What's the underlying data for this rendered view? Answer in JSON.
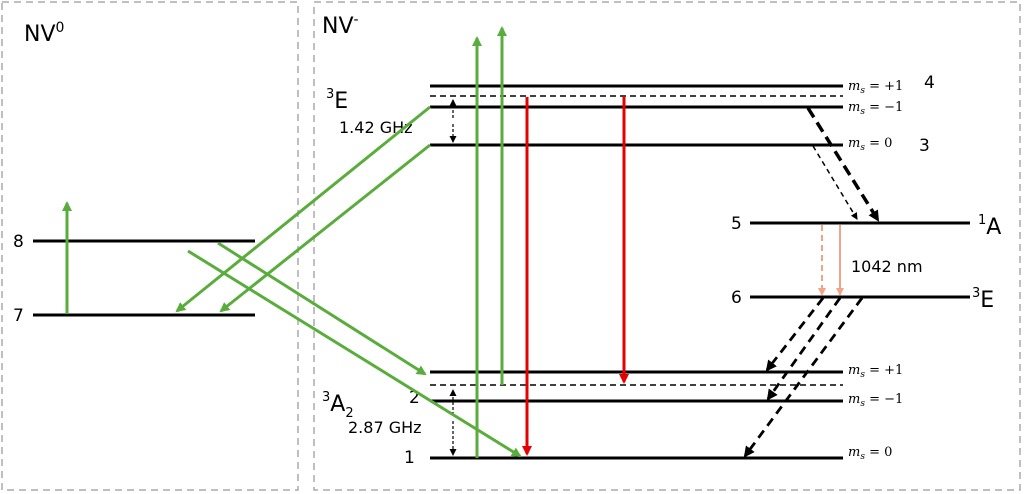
{
  "panels": {
    "left_title": "NV",
    "left_title_sup": "0",
    "right_title": "NV",
    "right_title_sup": "-"
  },
  "states": {
    "excited_triplet": {
      "sup": "3",
      "base": "E"
    },
    "ground_triplet": {
      "sup": "3",
      "base": "A",
      "sub": "2"
    },
    "singlet_upper": {
      "sup": "1",
      "base": "A"
    },
    "singlet_lower": {
      "sup": "3",
      "base": "E"
    }
  },
  "splittings": {
    "excited": "1.42 GHz",
    "ground": "2.87 GHz",
    "singlet_transition": "1042 nm"
  },
  "spin_labels": {
    "plus1": "m",
    "plus1_sub": "s",
    "plus1_val": " = +1",
    "minus1_val": " = −1",
    "zero_val": " = 0"
  },
  "level_numbers": {
    "n1": "1",
    "n2": "2",
    "n3": "3",
    "n4": "4",
    "n5": "5",
    "n6": "6",
    "n7": "7",
    "n8": "8"
  },
  "colors": {
    "green": "#5aad3c",
    "red": "#e60000",
    "salmon": "#f2a488",
    "panel_border": "#aaaaaa"
  }
}
